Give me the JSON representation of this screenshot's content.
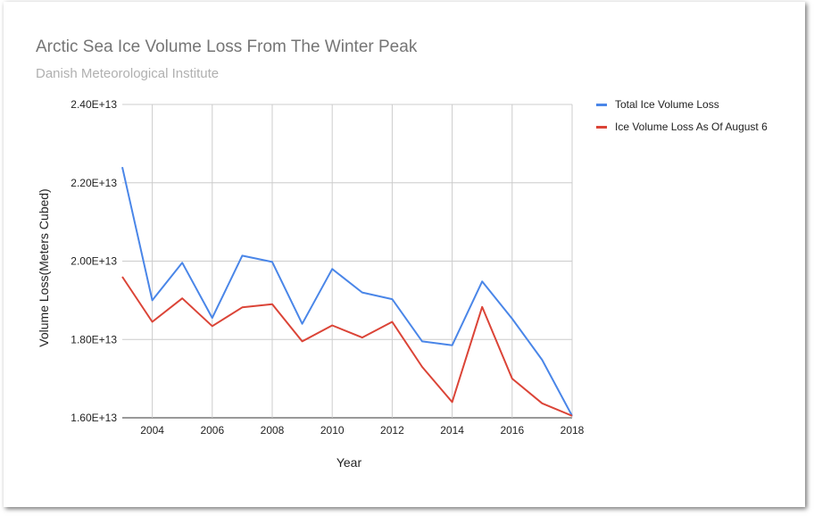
{
  "chart_data": {
    "type": "line",
    "title": "Arctic Sea Ice Volume Loss From The Winter Peak",
    "subtitle": "Danish Meteorological Institute",
    "xlabel": "Year",
    "ylabel": "Volume Loss(Meters Cubed)",
    "x": [
      2003,
      2004,
      2005,
      2006,
      2007,
      2008,
      2009,
      2010,
      2011,
      2012,
      2013,
      2014,
      2015,
      2016,
      2017,
      2018
    ],
    "xlim": [
      2003,
      2018
    ],
    "ylim": [
      16000000000000.0,
      24000000000000.0
    ],
    "x_ticks": [
      2004,
      2006,
      2008,
      2010,
      2012,
      2014,
      2016,
      2018
    ],
    "x_tick_labels": [
      "2004",
      "2006",
      "2008",
      "2010",
      "2012",
      "2014",
      "2016",
      "2018"
    ],
    "y_ticks": [
      16000000000000.0,
      18000000000000.0,
      20000000000000.0,
      22000000000000.0,
      24000000000000.0
    ],
    "y_tick_labels": [
      "1.60E+13",
      "1.80E+13",
      "2.00E+13",
      "2.20E+13",
      "2.40E+13"
    ],
    "grid": true,
    "legend_position": "right",
    "series": [
      {
        "name": "Total Ice Volume Loss",
        "color": "#4a86e8",
        "values": [
          22400000000000.0,
          19000000000000.0,
          19960000000000.0,
          18550000000000.0,
          20140000000000.0,
          19980000000000.0,
          18400000000000.0,
          19800000000000.0,
          19200000000000.0,
          19030000000000.0,
          17950000000000.0,
          17850000000000.0,
          19480000000000.0,
          18530000000000.0,
          17480000000000.0,
          16050000000000.0
        ]
      },
      {
        "name": "Ice Volume Loss As Of August 6",
        "color": "#db4437",
        "values": [
          19600000000000.0,
          18450000000000.0,
          19050000000000.0,
          18340000000000.0,
          18820000000000.0,
          18900000000000.0,
          17950000000000.0,
          18360000000000.0,
          18050000000000.0,
          18450000000000.0,
          17300000000000.0,
          16400000000000.0,
          18830000000000.0,
          17000000000000.0,
          16370000000000.0,
          16050000000000.0
        ]
      }
    ]
  }
}
